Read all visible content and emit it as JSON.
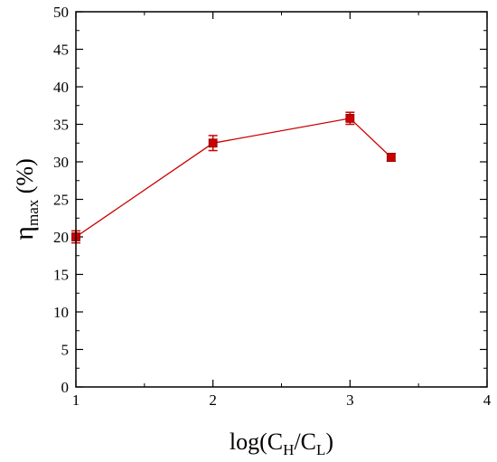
{
  "chart_data": {
    "type": "line",
    "title": "",
    "xlabel": {
      "text": "log(C",
      "sub1": "H",
      "mid": "/C",
      "sub2": "L",
      "end": ")"
    },
    "ylabel": {
      "symbol": "η",
      "sub": "max",
      "unit": " (%)"
    },
    "xlim": [
      1,
      4
    ],
    "ylim": [
      0,
      50
    ],
    "x_ticks": [
      "1",
      "2",
      "3",
      "4"
    ],
    "y_ticks": [
      "0",
      "5",
      "10",
      "15",
      "20",
      "25",
      "30",
      "35",
      "40",
      "45",
      "50"
    ],
    "grid": false,
    "series": [
      {
        "color": "#cc0000",
        "x": [
          1.0,
          2.0,
          3.0,
          3.3
        ],
        "y": [
          20.0,
          32.5,
          35.8,
          30.6
        ],
        "error": [
          0.8,
          1.0,
          0.8,
          0.5
        ]
      }
    ]
  }
}
